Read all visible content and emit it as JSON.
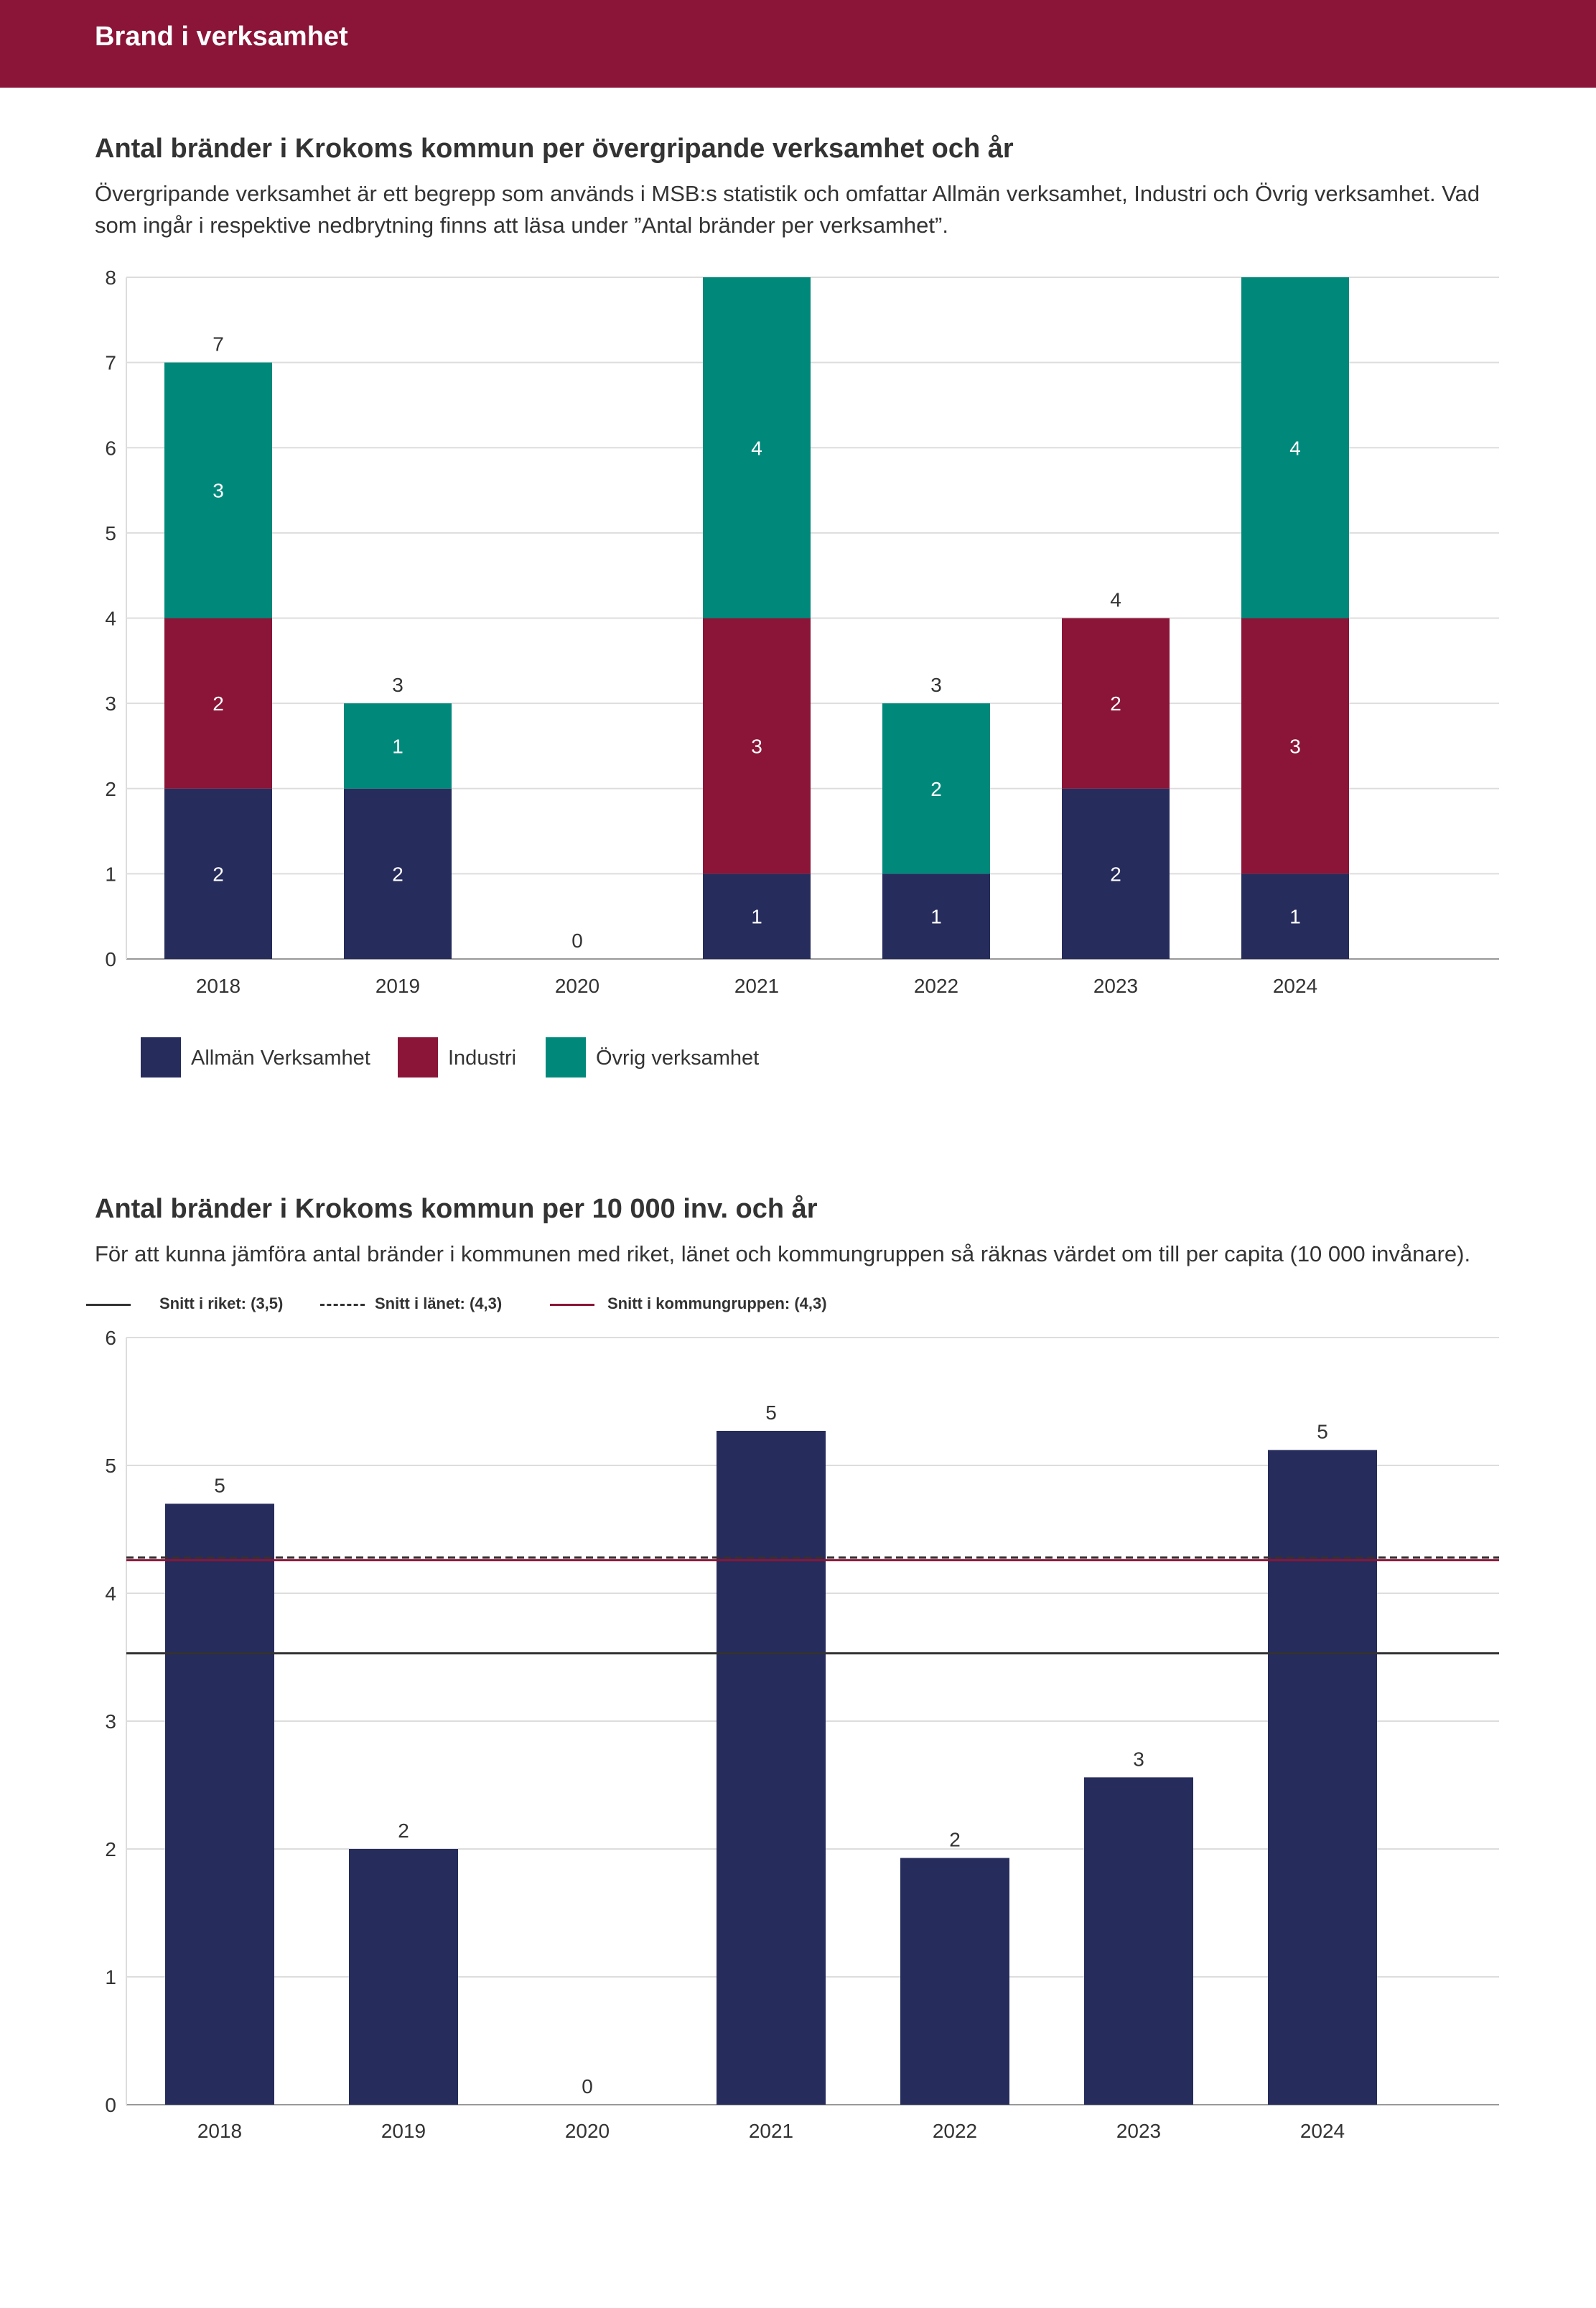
{
  "header": {
    "title": "Brand i verksamhet"
  },
  "section1": {
    "title": "Antal bränder i Krokoms kommun per övergripande verksamhet och år",
    "description": "Övergripande verksamhet är ett begrepp som används i MSB:s statistik och omfattar Allmän verksamhet, Industri och Övrig verksamhet. Vad som ingår i respektive nedbrytning finns att läsa under ”Antal bränder per verksamhet”."
  },
  "section2": {
    "title": "Antal bränder i Krokoms kommun per 10 000 inv. och år",
    "description": "För att kunna jämföra antal bränder i kommunen med riket, länet och kommungruppen så räknas värdet om till per capita (10 000 invånare)."
  },
  "chart_data": [
    {
      "type": "bar",
      "stacked": true,
      "title": "Antal bränder i Krokoms kommun per övergripande verksamhet och år",
      "categories": [
        "2018",
        "2019",
        "2020",
        "2021",
        "2022",
        "2023",
        "2024"
      ],
      "series": [
        {
          "name": "Allmän Verksamhet",
          "color": "#262c5c",
          "values": [
            2,
            2,
            0,
            1,
            1,
            2,
            1
          ]
        },
        {
          "name": "Industri",
          "color": "#8b1538",
          "values": [
            2,
            0,
            0,
            3,
            0,
            2,
            3
          ]
        },
        {
          "name": "Övrig verksamhet",
          "color": "#00897b",
          "values": [
            3,
            1,
            0,
            4,
            2,
            0,
            4
          ]
        }
      ],
      "totals": [
        7,
        3,
        0,
        8,
        3,
        4,
        8
      ],
      "total_labels": [
        "7",
        "3",
        "0",
        "",
        "3",
        "4",
        ""
      ],
      "ylim": [
        0,
        8
      ],
      "yticks": [
        0,
        1,
        2,
        3,
        4,
        5,
        6,
        7,
        8
      ],
      "grid": true,
      "legend": "bottom-left"
    },
    {
      "type": "bar",
      "title": "Antal bränder i Krokoms kommun per 10 000 inv. och år",
      "categories": [
        "2018",
        "2019",
        "2020",
        "2021",
        "2022",
        "2023",
        "2024"
      ],
      "values": [
        4.7,
        2.0,
        0.0,
        5.27,
        1.93,
        2.56,
        5.12
      ],
      "value_labels": [
        "5",
        "2",
        "0",
        "5",
        "2",
        "3",
        "5"
      ],
      "bar_color": "#262c5c",
      "ylim": [
        0,
        6
      ],
      "yticks": [
        0,
        1,
        2,
        3,
        4,
        5,
        6
      ],
      "grid": true,
      "reference_lines": [
        {
          "name": "Snitt i riket: (3,5)",
          "value": 3.53,
          "style": "solid",
          "color": "#333333"
        },
        {
          "name": "Snitt i länet: (4,3)",
          "value": 4.28,
          "style": "dashed",
          "color": "#333333"
        },
        {
          "name": "Snitt i kommungruppen: (4,3)",
          "value": 4.26,
          "style": "solid",
          "color": "#8b1538"
        }
      ],
      "legend": "top-left"
    }
  ]
}
